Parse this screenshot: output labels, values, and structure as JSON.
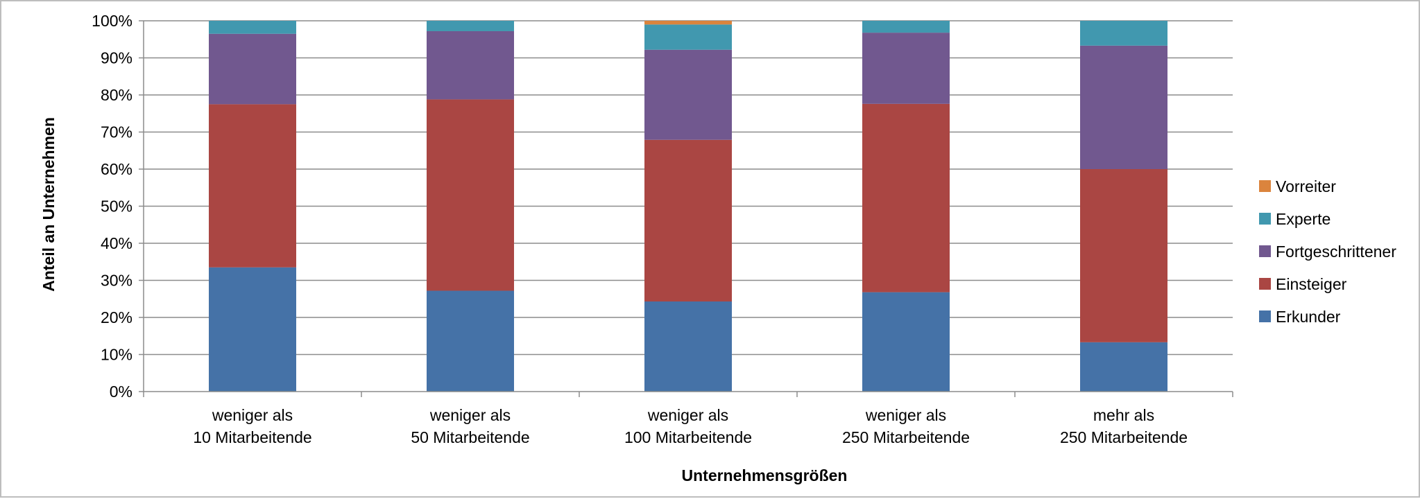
{
  "chart_data": {
    "type": "bar",
    "stacked": true,
    "percent_stacked": true,
    "categories": [
      [
        "weniger als",
        "10 Mitarbeitende"
      ],
      [
        "weniger als",
        "50 Mitarbeitende"
      ],
      [
        "weniger als",
        "100 Mitarbeitende"
      ],
      [
        "weniger als",
        "250 Mitarbeitende"
      ],
      [
        "mehr als",
        "250 Mitarbeitende"
      ]
    ],
    "series": [
      {
        "name": "Erkunder",
        "color": "#4572A7",
        "values": [
          33.5,
          27.2,
          24.3,
          26.8,
          13.3
        ]
      },
      {
        "name": "Einsteiger",
        "color": "#AA4643",
        "values": [
          44.0,
          51.6,
          43.6,
          50.8,
          46.7
        ]
      },
      {
        "name": "Fortgeschrittener",
        "color": "#71588F",
        "values": [
          19.0,
          18.4,
          24.3,
          19.2,
          33.3
        ]
      },
      {
        "name": "Experte",
        "color": "#4198AF",
        "values": [
          3.5,
          2.8,
          6.8,
          3.2,
          6.7
        ]
      },
      {
        "name": "Vorreiter",
        "color": "#DB843D",
        "values": [
          0,
          0,
          1.0,
          0,
          0
        ]
      }
    ],
    "ylim": [
      0,
      100
    ],
    "yticks": [
      "0%",
      "10%",
      "20%",
      "30%",
      "40%",
      "50%",
      "60%",
      "70%",
      "80%",
      "90%",
      "100%"
    ],
    "ylabel": "Anteil an Unternehmen",
    "xlabel": "Unternehmensgrößen",
    "legend_order": [
      "Vorreiter",
      "Experte",
      "Fortgeschrittener",
      "Einsteiger",
      "Erkunder"
    ],
    "legend_position": "right",
    "grid": true
  }
}
